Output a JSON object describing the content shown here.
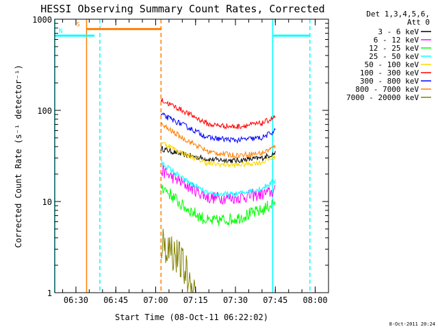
{
  "chart_data": {
    "type": "line",
    "title": "HESSI Observing Summary Count Rates, Corrected",
    "xlabel": "Start Time (08-Oct-11 06:22:02)",
    "ylabel": "Corrected Count Rate (s⁻¹ detector⁻¹)",
    "yscale": "log",
    "ylim": [
      1,
      1000
    ],
    "y_ticks": [
      "1",
      "10",
      "100",
      "1000"
    ],
    "x_ticks": [
      "06:30",
      "06:45",
      "07:00",
      "07:15",
      "07:30",
      "07:45",
      "08:00"
    ],
    "legend_header": [
      "Det 1,3,4,5,6,",
      "Att 0"
    ],
    "legend_position": "top-right",
    "timestamp": "8-Oct-2011 20:24",
    "series": [
      {
        "name": "3 - 6 keV",
        "color": "#000000",
        "values": [
          {
            "t": "07:02",
            "v": 38
          },
          {
            "t": "07:10",
            "v": 33
          },
          {
            "t": "07:20",
            "v": 29
          },
          {
            "t": "07:30",
            "v": 28
          },
          {
            "t": "07:40",
            "v": 30
          },
          {
            "t": "07:45",
            "v": 34
          }
        ]
      },
      {
        "name": "6 - 12 keV",
        "color": "#ff00ff",
        "values": [
          {
            "t": "07:02",
            "v": 22
          },
          {
            "t": "07:10",
            "v": 16
          },
          {
            "t": "07:20",
            "v": 11
          },
          {
            "t": "07:30",
            "v": 11
          },
          {
            "t": "07:40",
            "v": 12
          },
          {
            "t": "07:45",
            "v": 13
          }
        ]
      },
      {
        "name": "12 - 25 keV",
        "color": "#00ff00",
        "values": [
          {
            "t": "07:02",
            "v": 15
          },
          {
            "t": "07:10",
            "v": 9
          },
          {
            "t": "07:20",
            "v": 6
          },
          {
            "t": "07:30",
            "v": 6.5
          },
          {
            "t": "07:40",
            "v": 8
          },
          {
            "t": "07:45",
            "v": 10
          }
        ]
      },
      {
        "name": "25 - 50 keV",
        "color": "#00ffff",
        "values": [
          {
            "t": "07:02",
            "v": 27
          },
          {
            "t": "07:10",
            "v": 18
          },
          {
            "t": "07:20",
            "v": 12
          },
          {
            "t": "07:30",
            "v": 12
          },
          {
            "t": "07:40",
            "v": 14
          },
          {
            "t": "07:45",
            "v": 17
          }
        ]
      },
      {
        "name": "50 - 100 keV",
        "color": "#ffd700",
        "values": [
          {
            "t": "07:02",
            "v": 45
          },
          {
            "t": "07:10",
            "v": 34
          },
          {
            "t": "07:20",
            "v": 26
          },
          {
            "t": "07:30",
            "v": 25
          },
          {
            "t": "07:40",
            "v": 27
          },
          {
            "t": "07:45",
            "v": 31
          }
        ]
      },
      {
        "name": "100 - 300 keV",
        "color": "#ff0000",
        "values": [
          {
            "t": "07:02",
            "v": 130
          },
          {
            "t": "07:10",
            "v": 100
          },
          {
            "t": "07:20",
            "v": 70
          },
          {
            "t": "07:30",
            "v": 66
          },
          {
            "t": "07:40",
            "v": 72
          },
          {
            "t": "07:45",
            "v": 85
          }
        ]
      },
      {
        "name": "300 - 800 keV",
        "color": "#0000ff",
        "values": [
          {
            "t": "07:02",
            "v": 90
          },
          {
            "t": "07:10",
            "v": 70
          },
          {
            "t": "07:20",
            "v": 50
          },
          {
            "t": "07:30",
            "v": 47
          },
          {
            "t": "07:40",
            "v": 50
          },
          {
            "t": "07:45",
            "v": 60
          }
        ]
      },
      {
        "name": "800 - 7000 keV",
        "color": "#ff7f00",
        "values": [
          {
            "t": "07:02",
            "v": 70
          },
          {
            "t": "07:10",
            "v": 50
          },
          {
            "t": "07:20",
            "v": 35
          },
          {
            "t": "07:30",
            "v": 32
          },
          {
            "t": "07:40",
            "v": 34
          },
          {
            "t": "07:45",
            "v": 40
          }
        ]
      },
      {
        "name": "7000 - 20000 keV",
        "color": "#808000",
        "values": [
          {
            "t": "07:02",
            "v": 3.5
          },
          {
            "t": "07:06",
            "v": 3
          },
          {
            "t": "07:10",
            "v": 2
          },
          {
            "t": "07:13",
            "v": 1.3
          },
          {
            "t": "07:15",
            "v": 1
          }
        ]
      }
    ],
    "flags": [
      {
        "label": "S",
        "color": "#ff7f00",
        "start": "06:34",
        "end": "07:02",
        "level": 780
      },
      {
        "label": "N",
        "color": "#00ffff",
        "start": "06:22",
        "end": "06:37",
        "level": 660
      },
      {
        "label": "",
        "color": "#00ffff",
        "start": "07:44",
        "end": "07:58",
        "level": 660
      }
    ],
    "markers": [
      {
        "t": "06:22",
        "color": "#00ffff",
        "style": "solid"
      },
      {
        "t": "06:34",
        "color": "#ff7f00",
        "style": "solid"
      },
      {
        "t": "06:39",
        "color": "#00ffff",
        "style": "dashed"
      },
      {
        "t": "07:02",
        "color": "#ff7f00",
        "style": "dashed"
      },
      {
        "t": "07:44",
        "color": "#00ffff",
        "style": "solid"
      },
      {
        "t": "07:58",
        "color": "#00ffff",
        "style": "dashed"
      }
    ]
  }
}
